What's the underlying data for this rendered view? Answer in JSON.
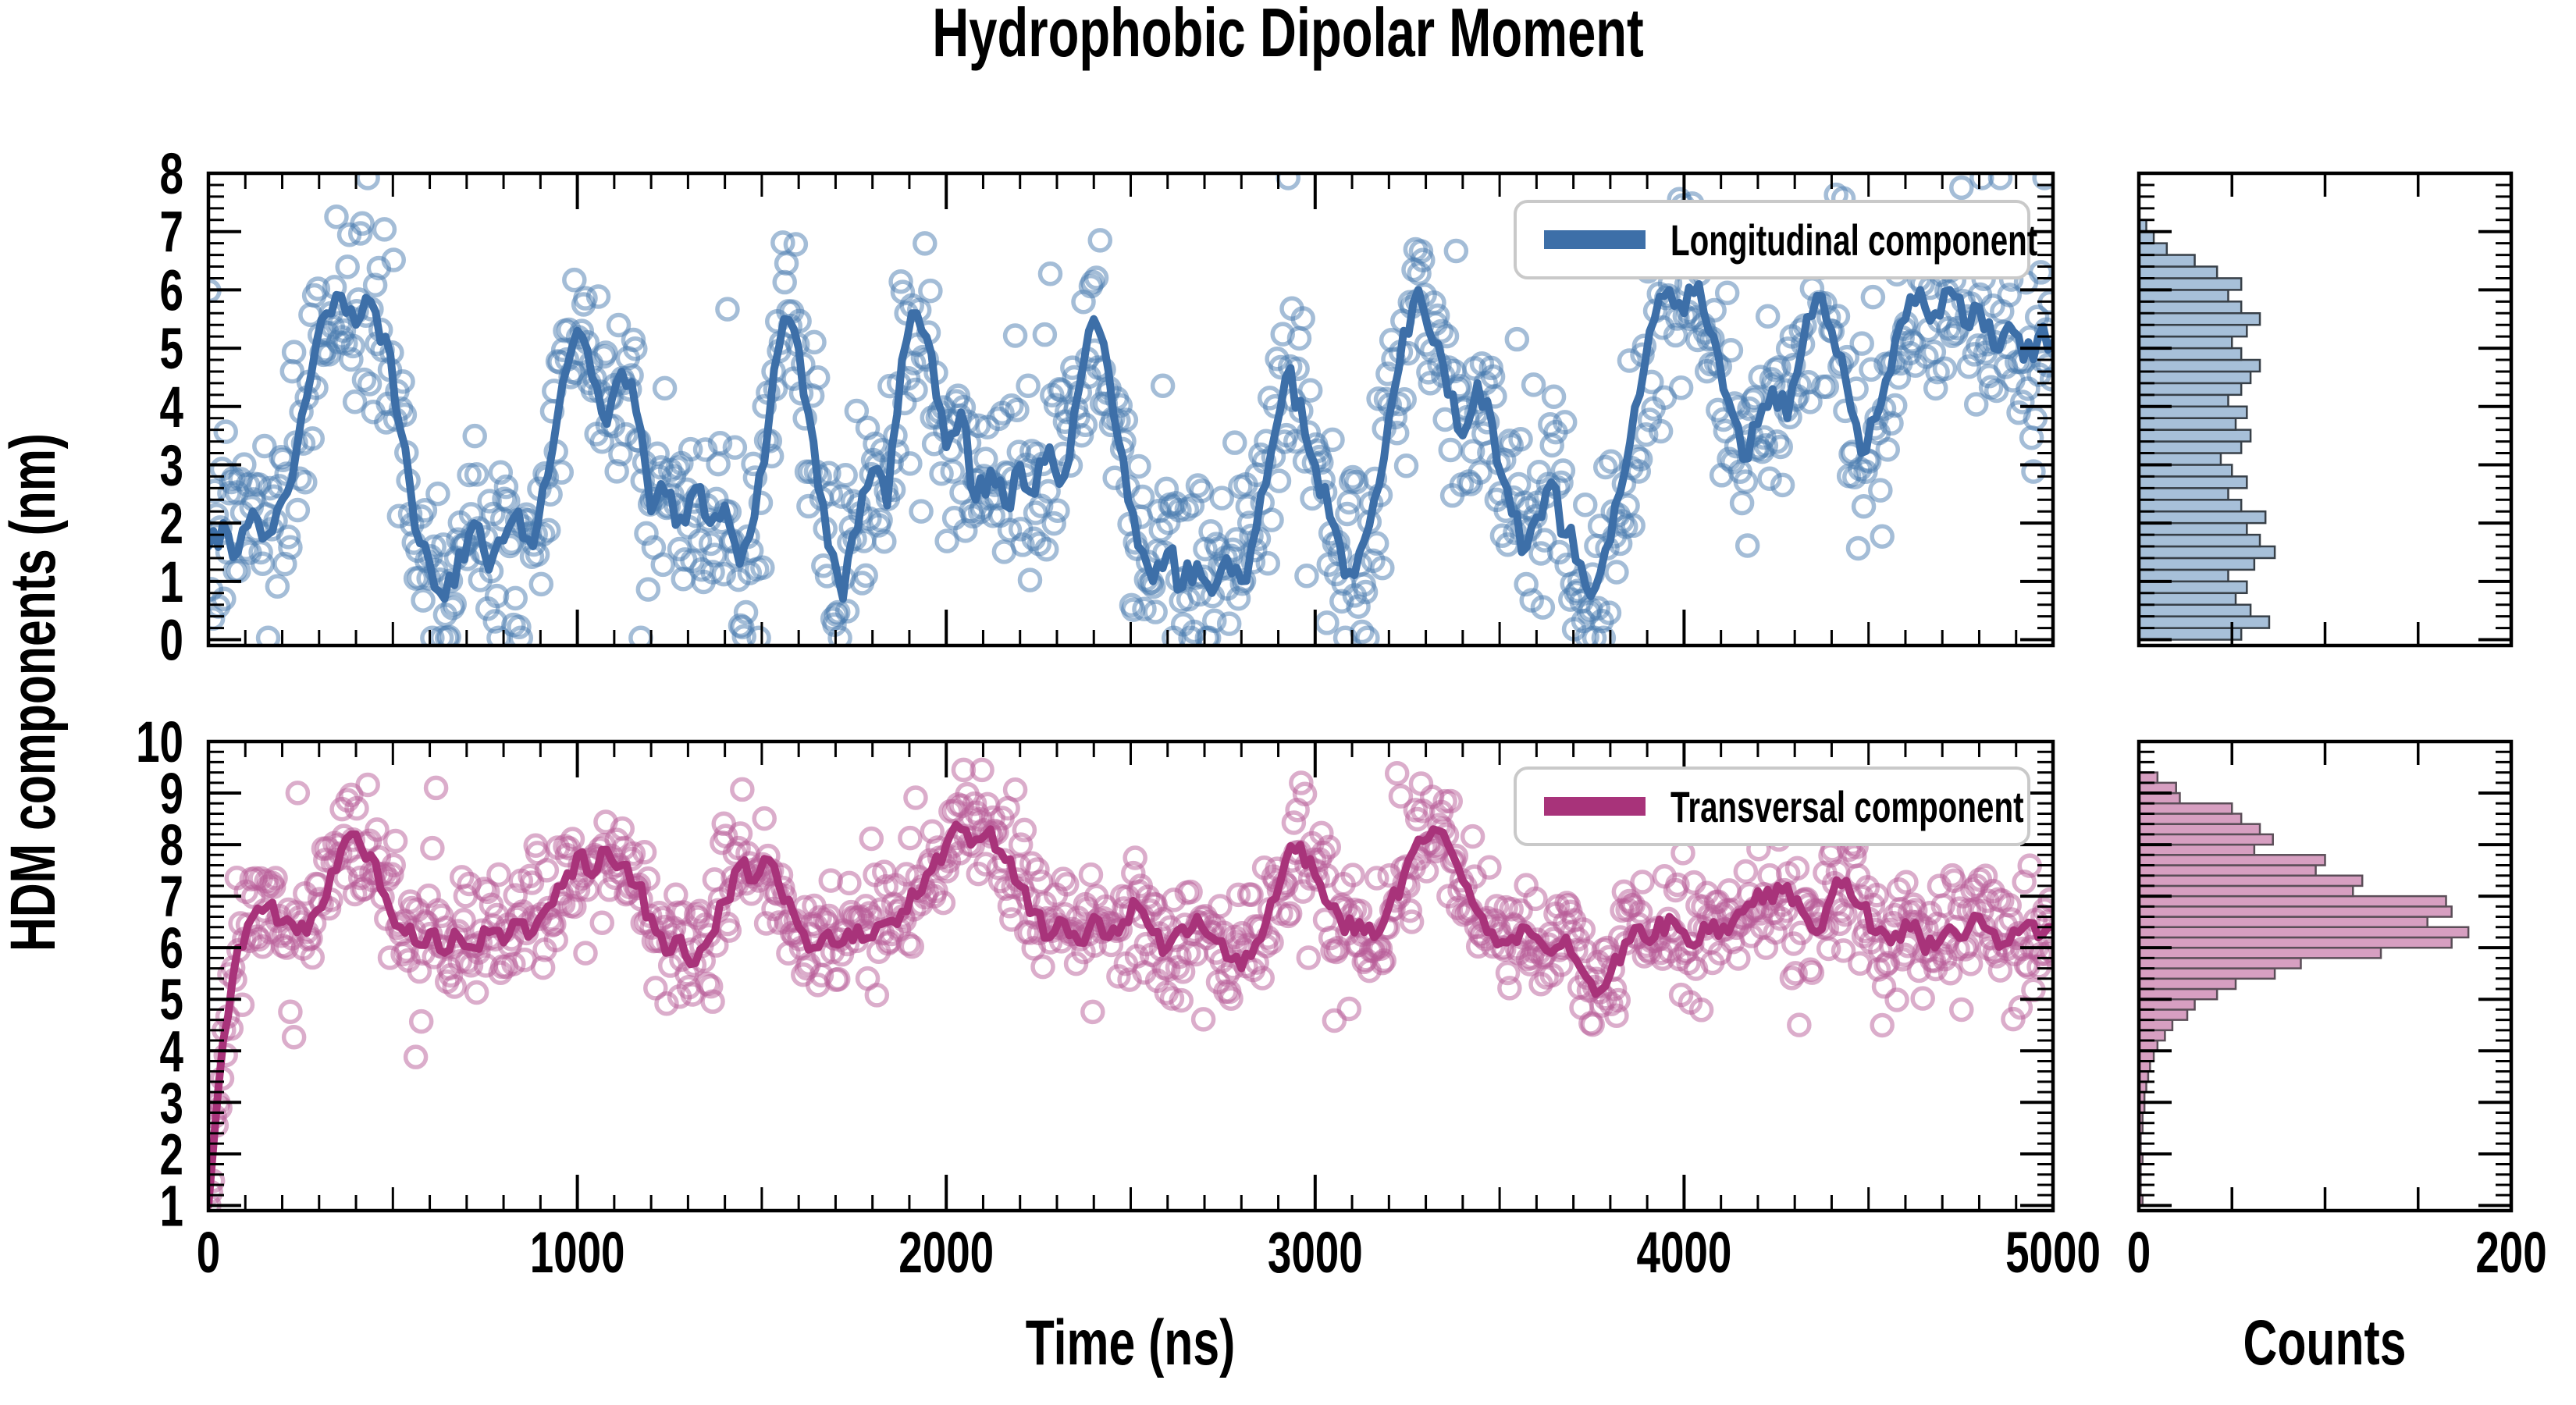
{
  "title": "Hydrophobic Dipolar Moment",
  "axes": {
    "ylabel": "HDM components (nm)",
    "xlabel_time": "Time (ns)",
    "xlabel_counts": "Counts"
  },
  "colors": {
    "background": "#ffffff",
    "frame": "#000000",
    "longitudinal_line": "#3d6fa8",
    "longitudinal_scatter": "#4a7cb0",
    "longitudinal_hist_fill": "#a7c0d9",
    "longitudinal_hist_edge": "#384048",
    "transversal_line": "#a8337a",
    "transversal_scatter": "#b85b97",
    "transversal_hist_fill": "#d79fc1",
    "transversal_hist_edge": "#5b4e58",
    "legend_border": "#c9c9c9"
  },
  "chart_data": [
    {
      "type": "line+scatter",
      "name": "longitudinal",
      "legend": "Longitudinal component",
      "xlim": [
        0,
        5000
      ],
      "ylim": [
        -0.1,
        8.0
      ],
      "xticks": [
        0,
        1000,
        2000,
        3000,
        4000,
        5000
      ],
      "yticks": [
        0,
        1,
        2,
        3,
        4,
        5,
        6,
        7,
        8
      ],
      "x_minor_step": 100,
      "y_minor_step": 0.2,
      "line": {
        "dt": 40,
        "values": [
          1.6,
          2.0,
          1.5,
          2.2,
          1.8,
          2.4,
          3.3,
          4.6,
          5.6,
          5.9,
          5.4,
          5.8,
          5.2,
          3.6,
          1.9,
          1.3,
          0.7,
          1.5,
          2.0,
          1.2,
          1.7,
          2.2,
          1.6,
          2.8,
          4.4,
          5.3,
          4.5,
          3.7,
          4.6,
          3.9,
          2.2,
          2.5,
          2.1,
          2.6,
          2.0,
          2.3,
          1.3,
          2.1,
          3.8,
          5.5,
          5.0,
          3.4,
          1.6,
          0.7,
          1.9,
          2.9,
          2.3,
          4.8,
          5.6,
          4.9,
          3.3,
          3.9,
          2.4,
          2.9,
          2.3,
          3.0,
          2.5,
          3.3,
          2.8,
          4.3,
          5.5,
          4.6,
          3.1,
          1.6,
          1.0,
          1.5,
          0.9,
          1.3,
          0.8,
          1.4,
          1.0,
          1.9,
          3.2,
          4.5,
          4.1,
          3.0,
          2.1,
          1.1,
          1.5,
          2.4,
          3.8,
          5.3,
          6.0,
          5.1,
          4.2,
          3.5,
          4.4,
          3.7,
          2.6,
          1.5,
          2.1,
          2.7,
          1.8,
          1.3,
          0.9,
          1.7,
          2.9,
          4.2,
          5.5,
          6.0,
          5.6,
          6.1,
          5.2,
          4.1,
          3.1,
          3.7,
          4.3,
          3.8,
          5.0,
          5.9,
          5.3,
          4.4,
          3.2,
          3.8,
          4.6,
          5.5,
          6.0,
          5.6,
          6.0,
          5.4,
          5.7,
          5.0,
          5.4,
          4.8,
          5.2,
          5.1
        ]
      },
      "line_wiggle": {
        "step": 13,
        "amp": 0.3,
        "seed": 3
      },
      "scatter_model": {
        "n": 1000,
        "dt": 5,
        "sd": 0.85,
        "outlier_frac": 0.07,
        "outlier_mult": 2.2,
        "seed": 7,
        "clip": [
          0.03,
          7.92
        ]
      }
    },
    {
      "type": "line+scatter",
      "name": "transversal",
      "legend": "Transversal component",
      "xlim": [
        0,
        5000
      ],
      "ylim": [
        0.9,
        10.0
      ],
      "xticks": [
        0,
        1000,
        2000,
        3000,
        4000,
        5000
      ],
      "yticks": [
        1,
        2,
        3,
        4,
        5,
        6,
        7,
        8,
        9,
        10
      ],
      "x_minor_step": 100,
      "y_minor_step": 0.2,
      "line": {
        "dt": 40,
        "values": [
          1.0,
          4.2,
          6.0,
          6.6,
          6.8,
          6.5,
          6.3,
          6.6,
          7.0,
          7.9,
          8.2,
          7.8,
          7.0,
          6.4,
          6.1,
          6.3,
          5.9,
          6.2,
          6.0,
          6.3,
          6.1,
          6.5,
          6.3,
          6.8,
          7.2,
          7.8,
          7.4,
          7.9,
          7.6,
          7.2,
          6.6,
          5.9,
          6.2,
          5.7,
          6.2,
          6.9,
          7.6,
          7.3,
          7.7,
          6.9,
          6.4,
          6.0,
          6.3,
          6.1,
          6.4,
          6.2,
          6.5,
          6.7,
          7.0,
          7.5,
          8.0,
          8.3,
          8.1,
          8.3,
          7.7,
          7.2,
          6.7,
          6.2,
          6.5,
          6.1,
          6.6,
          6.2,
          6.5,
          6.8,
          6.3,
          6.0,
          6.4,
          6.6,
          6.2,
          5.8,
          5.6,
          6.1,
          6.9,
          7.7,
          8.0,
          7.4,
          6.8,
          6.3,
          6.5,
          6.2,
          6.8,
          7.4,
          8.1,
          8.3,
          8.0,
          7.3,
          6.7,
          6.3,
          6.1,
          6.4,
          6.2,
          5.9,
          6.2,
          5.6,
          5.1,
          5.5,
          6.1,
          6.4,
          6.2,
          6.6,
          6.3,
          6.1,
          6.5,
          6.3,
          6.7,
          7.1,
          6.9,
          7.2,
          6.7,
          6.3,
          7.0,
          7.3,
          6.8,
          6.3,
          6.1,
          6.5,
          6.2,
          6.0,
          6.4,
          6.2,
          6.6,
          6.3,
          6.1,
          6.4,
          6.2,
          6.4
        ]
      },
      "line_wiggle": {
        "step": 13,
        "amp": 0.22,
        "seed": 5
      },
      "scatter_model": {
        "n": 1000,
        "dt": 5,
        "sd": 0.55,
        "outlier_frac": 0.07,
        "outlier_mult": 2.2,
        "seed": 11,
        "clip": [
          1.0,
          9.45
        ]
      }
    },
    {
      "type": "histogram",
      "name": "longitudinal-counts",
      "orientation": "horizontal",
      "xlabel": "Counts",
      "xlim": [
        0,
        200
      ],
      "xticks": [
        0,
        50,
        100,
        150,
        200
      ],
      "xtick_labels_shown": [
        "0",
        "200"
      ],
      "bin_start": 0.0,
      "bin_width": 0.2,
      "counts": [
        55,
        70,
        60,
        52,
        58,
        48,
        62,
        73,
        65,
        58,
        68,
        55,
        48,
        58,
        50,
        44,
        55,
        60,
        52,
        58,
        48,
        55,
        60,
        65,
        55,
        50,
        58,
        65,
        55,
        48,
        55,
        42,
        30,
        15,
        8,
        4
      ]
    },
    {
      "type": "histogram",
      "name": "transversal-counts",
      "orientation": "horizontal",
      "xlabel": "Counts",
      "xlim": [
        0,
        200
      ],
      "xticks": [
        0,
        50,
        100,
        150,
        200
      ],
      "xtick_labels_shown": [
        "0",
        "200"
      ],
      "bin_start": 1.0,
      "bin_width": 0.2,
      "counts": [
        2,
        1,
        1,
        1,
        2,
        1,
        1,
        2,
        2,
        3,
        3,
        4,
        5,
        6,
        8,
        10,
        14,
        18,
        26,
        30,
        42,
        52,
        73,
        87,
        130,
        168,
        177,
        155,
        168,
        165,
        115,
        120,
        95,
        100,
        62,
        72,
        65,
        55,
        50,
        22,
        20,
        10
      ]
    }
  ]
}
